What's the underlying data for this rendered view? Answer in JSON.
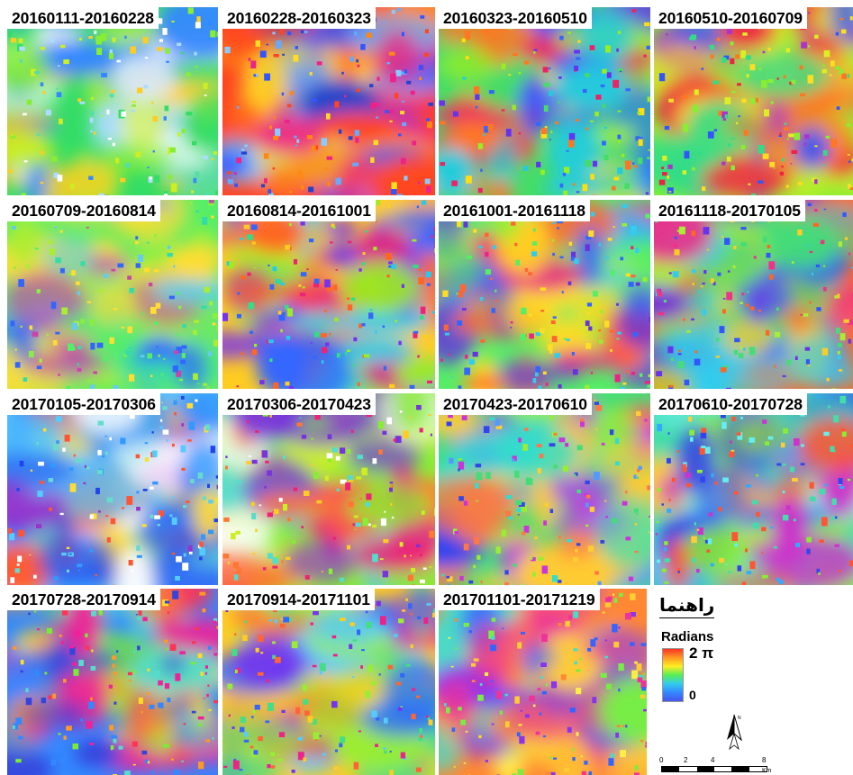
{
  "tiles": [
    {
      "label": "20160111-20160228",
      "palette": [
        "#33dd66",
        "#88ee33",
        "#ccee22",
        "#ffcc22",
        "#55ddaa",
        "#ffffff",
        "#aaddff",
        "#3388ff"
      ]
    },
    {
      "label": "20160228-20160323",
      "palette": [
        "#ff4422",
        "#ff8811",
        "#ffdd22",
        "#ee2288",
        "#3355ff",
        "#66aaff",
        "#2244cc",
        "#88ccff"
      ]
    },
    {
      "label": "20160323-20160510",
      "palette": [
        "#44dd66",
        "#99ee22",
        "#ffdd11",
        "#ff7722",
        "#ee2266",
        "#6633ee",
        "#3366ff",
        "#22ccdd"
      ]
    },
    {
      "label": "20160510-20160709",
      "palette": [
        "#88ee33",
        "#ffdd22",
        "#ff7722",
        "#ee2244",
        "#aa33cc",
        "#3355ff",
        "#33dd88",
        "#ddee22"
      ]
    },
    {
      "label": "20160709-20160814",
      "palette": [
        "#55ee66",
        "#88ee44",
        "#aaee33",
        "#33ddaa",
        "#3366ff",
        "#ffdd33",
        "#66ccee",
        "#cc44aa"
      ]
    },
    {
      "label": "20160814-20161001",
      "palette": [
        "#ffcc22",
        "#ff6622",
        "#ee2277",
        "#7733ee",
        "#3366ff",
        "#33dd88",
        "#99ee22",
        "#22ccee"
      ]
    },
    {
      "label": "20161001-20161118",
      "palette": [
        "#55ee66",
        "#99ee33",
        "#ffdd22",
        "#ff6633",
        "#ee2288",
        "#6633dd",
        "#3366ff",
        "#33ccee"
      ]
    },
    {
      "label": "20161118-20170105",
      "palette": [
        "#ff6622",
        "#ffcc22",
        "#ee3388",
        "#6633ee",
        "#3355ff",
        "#33ccee",
        "#44dd77",
        "#aaee33"
      ]
    },
    {
      "label": "20170105-20170306",
      "palette": [
        "#55ccff",
        "#3399ff",
        "#2244ee",
        "#66ddcc",
        "#ffffff",
        "#ffdd33",
        "#ff5533",
        "#9933cc"
      ]
    },
    {
      "label": "20170306-20170423",
      "palette": [
        "#88ee33",
        "#ccee22",
        "#ffcc22",
        "#ff7733",
        "#ffffff",
        "#ee2277",
        "#55ddcc",
        "#7733dd"
      ]
    },
    {
      "label": "20170423-20170610",
      "palette": [
        "#44dd77",
        "#99ee33",
        "#33ddcc",
        "#5599ff",
        "#3344ee",
        "#ffcc33",
        "#cc33dd",
        "#ff7744"
      ]
    },
    {
      "label": "20170610-20170728",
      "palette": [
        "#44ddaa",
        "#66eeee",
        "#33aaff",
        "#3344ee",
        "#ffcc33",
        "#88ee33",
        "#ff5533",
        "#cc33cc"
      ]
    },
    {
      "label": "20170728-20170914",
      "palette": [
        "#3388ff",
        "#55ddcc",
        "#ffdd22",
        "#ff9922",
        "#ff3355",
        "#ee2299",
        "#77ee33",
        "#3344dd"
      ]
    },
    {
      "label": "20170914-20171101",
      "palette": [
        "#ffcc22",
        "#ff6633",
        "#ee2288",
        "#7733ee",
        "#3366ff",
        "#44dd88",
        "#99ee33",
        "#55ccff"
      ]
    },
    {
      "label": "201701101-20171219",
      "palette": [
        "#ff8833",
        "#ffcc33",
        "#ee3399",
        "#8833ee",
        "#3366ff",
        "#44ddcc",
        "#77ee44",
        "#ffee44"
      ]
    }
  ],
  "legend": {
    "title": "راهنما",
    "subtitle": "Radians",
    "max_label": "2 π",
    "min_label": "0",
    "ramp_colors": [
      "#ff3322",
      "#ff9922",
      "#ffee22",
      "#55ee55",
      "#33ccee",
      "#3388ff",
      "#4455ee"
    ],
    "north_label": "N",
    "scale_ticks": [
      "0",
      "2",
      "4",
      "8"
    ],
    "scale_unit": "Km"
  }
}
